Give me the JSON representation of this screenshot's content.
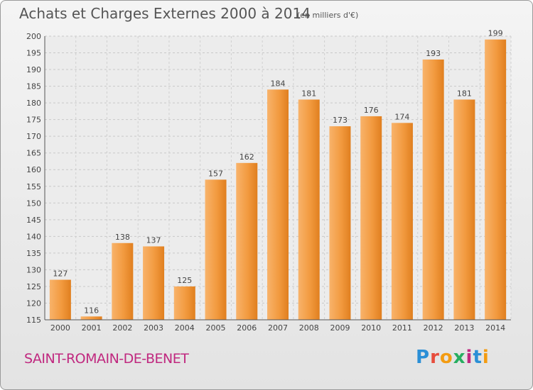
{
  "header": {
    "title": "Achats et Charges Externes 2000 à 2014",
    "subtitle": "(en milliers d'€)"
  },
  "footer": {
    "town": "SAINT-ROMAIN-DE-BENET",
    "logo_letters": [
      "P",
      "r",
      "o",
      "x",
      "i",
      "t",
      "i"
    ],
    "logo_colors": [
      "#2b8fd6",
      "#e74c3c",
      "#f39c12",
      "#27ae60",
      "#c0287f",
      "#2b8fd6",
      "#f39c12"
    ]
  },
  "chart_data": {
    "type": "bar",
    "title": "Achats et Charges Externes 2000 à 2014",
    "categories": [
      "2000",
      "2001",
      "2002",
      "2003",
      "2004",
      "2005",
      "2006",
      "2007",
      "2008",
      "2009",
      "2010",
      "2011",
      "2012",
      "2013",
      "2014"
    ],
    "values": [
      127,
      116,
      138,
      137,
      125,
      157,
      162,
      184,
      181,
      173,
      176,
      174,
      193,
      181,
      199
    ],
    "ylim": [
      115,
      200
    ],
    "yticks": [
      115,
      120,
      125,
      130,
      135,
      140,
      145,
      150,
      155,
      160,
      165,
      170,
      175,
      180,
      185,
      190,
      195,
      200
    ],
    "grid": true,
    "bar_color": "#f0932f",
    "bar_color_light": "#f7b26a"
  }
}
